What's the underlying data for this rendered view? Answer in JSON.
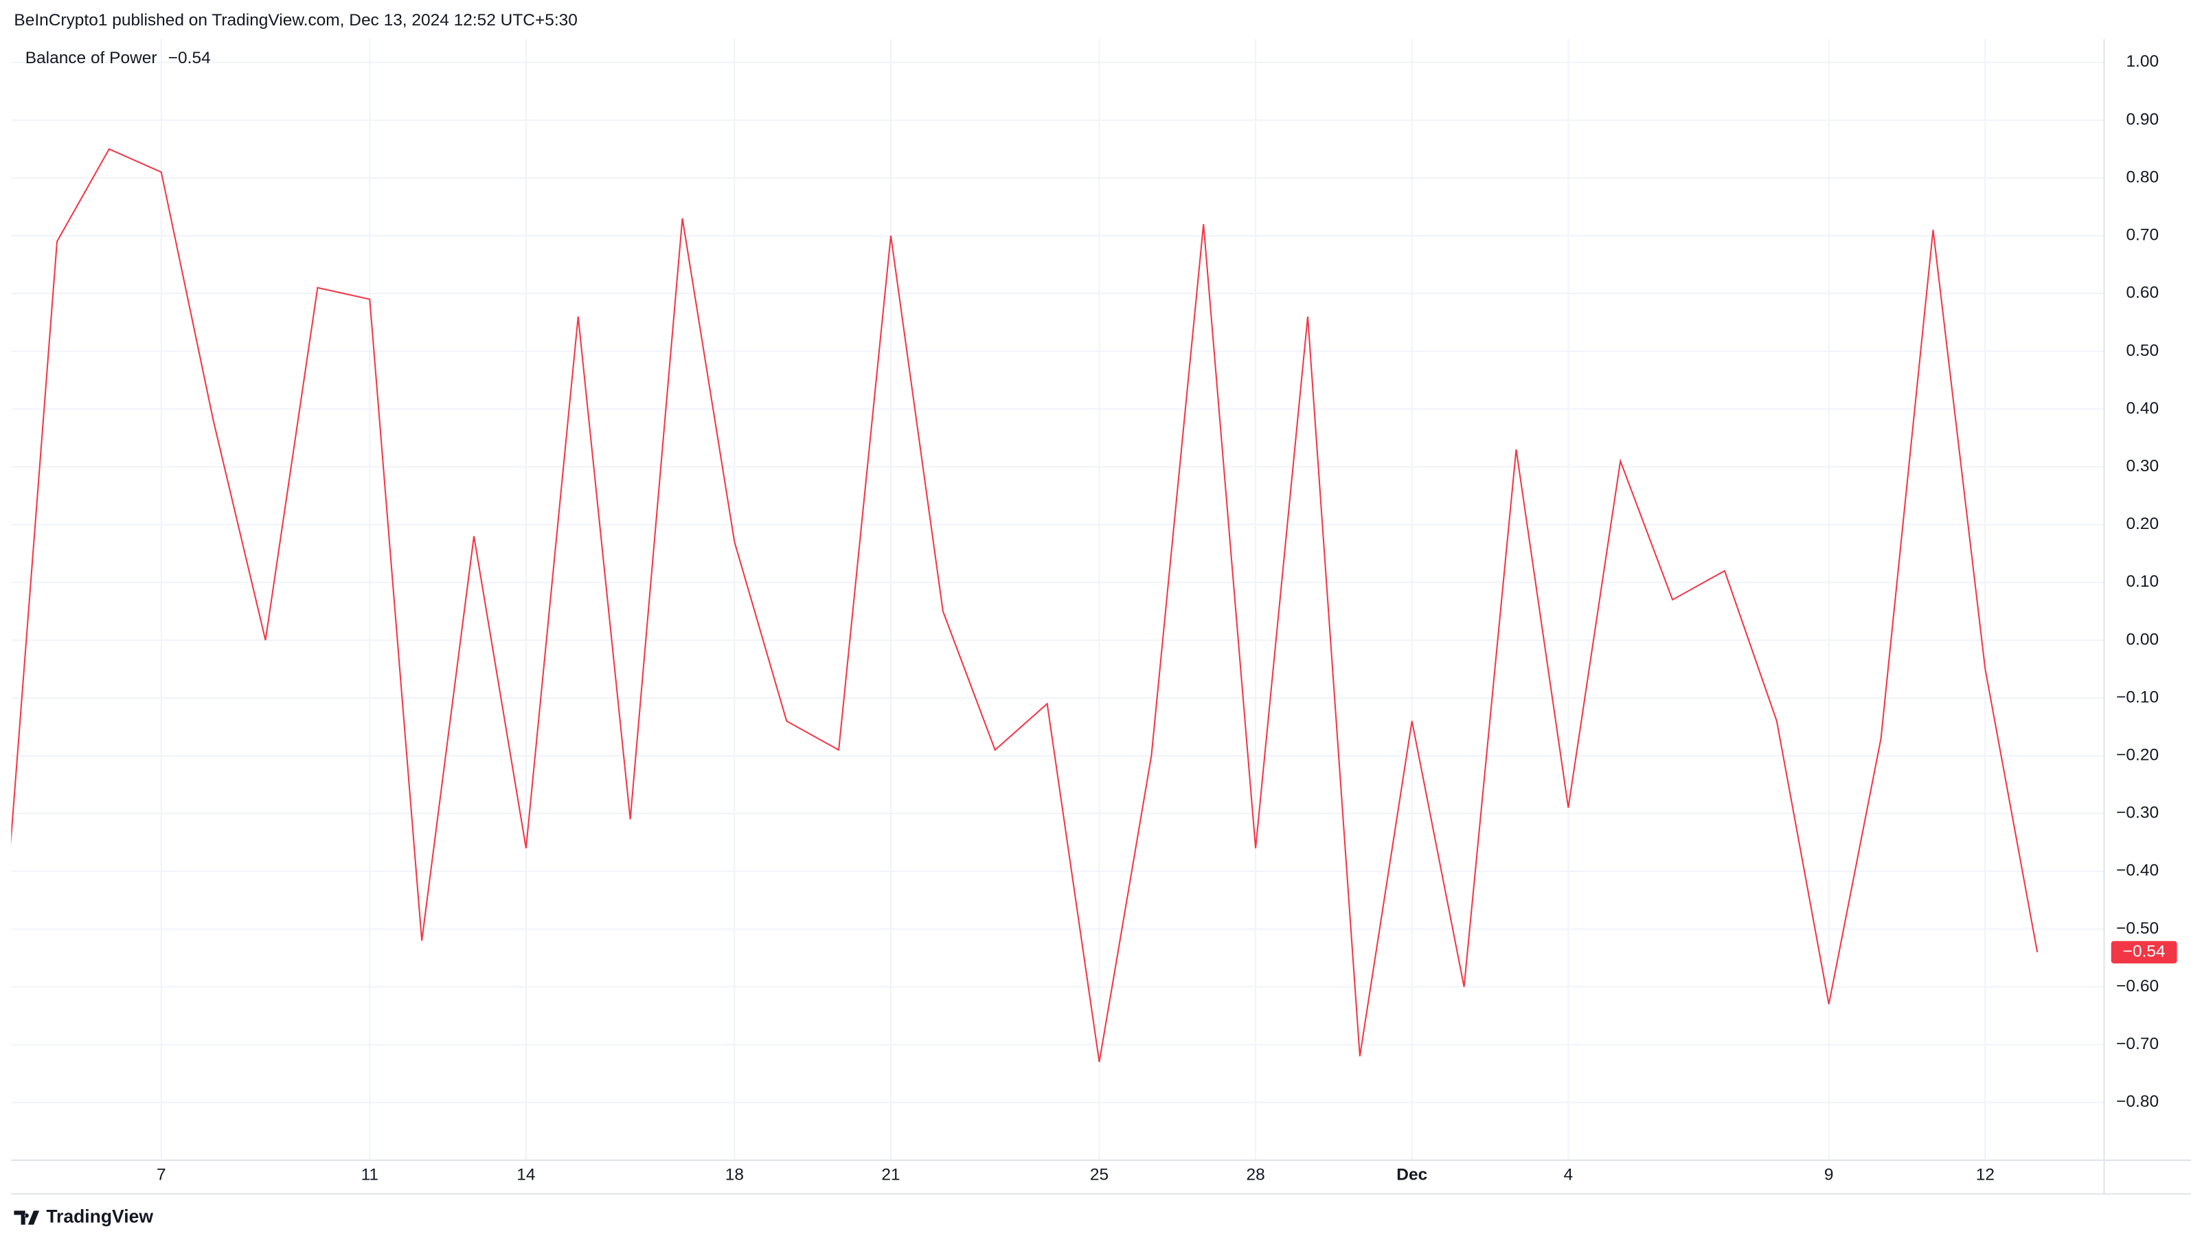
{
  "header": {
    "text": "BeInCrypto1 published on TradingView.com, Dec 13, 2024 12:52 UTC+5:30"
  },
  "footer": {
    "logo": "TradingView"
  },
  "chart_data": {
    "type": "line",
    "categories": [
      null,
      null,
      null,
      "7",
      null,
      null,
      null,
      "11",
      null,
      null,
      "14",
      null,
      null,
      null,
      "18",
      null,
      null,
      "21",
      null,
      null,
      null,
      "25",
      null,
      null,
      "28",
      null,
      null,
      "Dec",
      null,
      null,
      "4",
      null,
      null,
      null,
      null,
      "9",
      null,
      null,
      "12",
      null
    ],
    "series": [
      {
        "name": "Balance of Power",
        "color": "#f23645",
        "values": [
          -0.48,
          0.69,
          0.85,
          0.81,
          0.38,
          0.0,
          0.61,
          0.59,
          -0.52,
          0.18,
          -0.36,
          0.56,
          -0.31,
          0.73,
          0.17,
          -0.14,
          -0.19,
          0.7,
          0.05,
          -0.19,
          -0.11,
          -0.73,
          -0.2,
          0.72,
          -0.36,
          0.56,
          -0.72,
          -0.14,
          -0.6,
          0.33,
          -0.29,
          0.31,
          0.07,
          0.12,
          -0.14,
          -0.63,
          -0.17,
          0.71,
          -0.05,
          -0.54
        ],
        "value_labels": [
          null,
          null,
          null,
          null,
          null,
          null,
          null,
          null,
          null,
          null,
          null,
          null,
          null,
          null,
          null,
          null,
          null,
          null,
          null,
          null,
          null,
          null,
          null,
          null,
          null,
          null,
          null,
          null,
          null,
          null,
          null,
          null,
          null,
          null,
          null,
          null,
          null,
          null,
          null,
          "−0.54"
        ]
      }
    ],
    "ylim": [
      -0.9,
      1.04
    ],
    "yticks": [
      {
        "value": 1.0,
        "label": "1.00"
      },
      {
        "value": 0.9,
        "label": "0.90"
      },
      {
        "value": 0.8,
        "label": "0.80"
      },
      {
        "value": 0.7,
        "label": "0.70"
      },
      {
        "value": 0.6,
        "label": "0.60"
      },
      {
        "value": 0.5,
        "label": "0.50"
      },
      {
        "value": 0.4,
        "label": "0.40"
      },
      {
        "value": 0.3,
        "label": "0.30"
      },
      {
        "value": 0.2,
        "label": "0.20"
      },
      {
        "value": 0.1,
        "label": "0.10"
      },
      {
        "value": 0,
        "label": "0.00"
      },
      {
        "value": -0.1,
        "label": "−0.10"
      },
      {
        "value": -0.2,
        "label": "−0.20"
      },
      {
        "value": -0.3,
        "label": "−0.30"
      },
      {
        "value": -0.4,
        "label": "−0.40"
      },
      {
        "value": -0.5,
        "label": "−0.50"
      },
      {
        "value": -0.6,
        "label": "−0.60"
      },
      {
        "value": -0.7,
        "label": "−0.70"
      },
      {
        "value": -0.8,
        "label": "−0.80"
      }
    ],
    "grid": true
  }
}
